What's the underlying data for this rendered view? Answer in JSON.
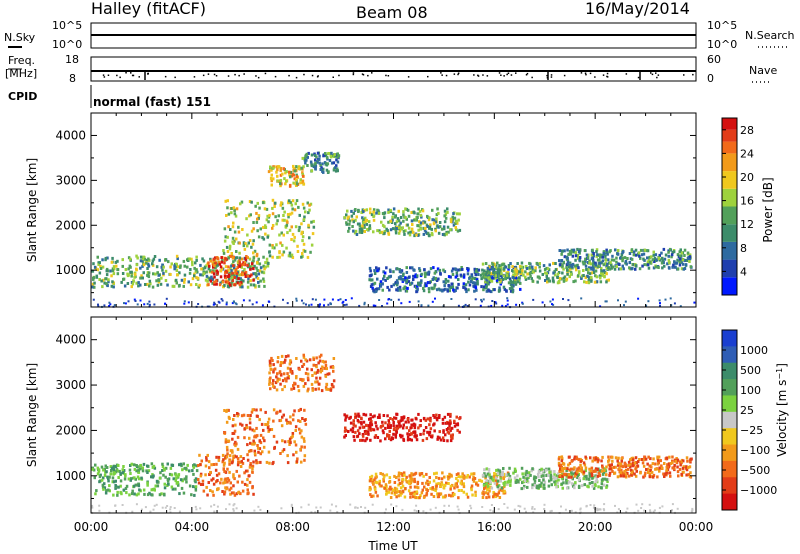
{
  "header": {
    "title": "Halley (fitACF)",
    "beam": "Beam 08",
    "date": "16/May/2014"
  },
  "left_labels": {
    "nsky": "N.Sky",
    "freq_line1": "Freq.",
    "freq_line2": "[MHz]",
    "cpid": "CPID"
  },
  "right_labels": {
    "nsearch": "N.Search",
    "nave": "Nave"
  },
  "noise_panel": {
    "left_ticks": [
      "10^5",
      "10^0"
    ],
    "right_ticks": [
      "10^5",
      "10^0"
    ]
  },
  "freq_panel": {
    "left_ticks": [
      "18",
      "8"
    ],
    "right_ticks": [
      "60",
      "0"
    ]
  },
  "cpid_text": "normal (fast) 151",
  "colors": {
    "power": [
      "#0019ff",
      "#1f3fae",
      "#2e6aa0",
      "#3c8c6a",
      "#52a05a",
      "#9ed23d",
      "#f0c81e",
      "#f29a1a",
      "#f26a1a",
      "#e23c18",
      "#d41010"
    ],
    "velocity": [
      "#1a3fd0",
      "#2f5db5",
      "#3c8c6a",
      "#52a05a",
      "#7bd23f",
      "#c8c8c8",
      "#f0c81e",
      "#f29a1a",
      "#f26a1a",
      "#e23c18",
      "#d41010"
    ]
  },
  "chart_data": [
    {
      "type": "heatmap",
      "panel": "power",
      "ylabel": "Slant Range [km]",
      "xlabel": "",
      "x_ticks": [
        "00:00",
        "04:00",
        "08:00",
        "12:00",
        "16:00",
        "20:00",
        "00:00"
      ],
      "xlim_hours": [
        0,
        24
      ],
      "y_ticks": [
        1000,
        2000,
        3000,
        4000
      ],
      "ylim": [
        180,
        4500
      ],
      "colorbar": {
        "label": "Power [dB]",
        "ticks": [
          4,
          8,
          12,
          16,
          20,
          24,
          28
        ],
        "range": [
          0,
          30
        ]
      },
      "regions": [
        {
          "t": [
            0,
            7
          ],
          "r": [
            650,
            1350
          ],
          "v": 11
        },
        {
          "t": [
            4.6,
            6.4
          ],
          "r": [
            700,
            1350
          ],
          "v": 27
        },
        {
          "t": [
            5.2,
            8.8
          ],
          "r": [
            1300,
            2600
          ],
          "v": 14
        },
        {
          "t": [
            7.0,
            8.4
          ],
          "r": [
            2900,
            3350
          ],
          "v": 19
        },
        {
          "t": [
            8.3,
            9.8
          ],
          "r": [
            3200,
            3650
          ],
          "v": 10
        },
        {
          "t": [
            10.0,
            14.6
          ],
          "r": [
            1800,
            2400
          ],
          "v": 12
        },
        {
          "t": [
            11.0,
            17.0
          ],
          "r": [
            550,
            1100
          ],
          "v": 7
        },
        {
          "t": [
            15.5,
            20.5
          ],
          "r": [
            750,
            1200
          ],
          "v": 13
        },
        {
          "t": [
            18.5,
            23.8
          ],
          "r": [
            1050,
            1500
          ],
          "v": 8
        }
      ]
    },
    {
      "type": "heatmap",
      "panel": "velocity",
      "ylabel": "Slant Range [km]",
      "xlabel": "Time UT",
      "x_ticks": [
        "00:00",
        "04:00",
        "08:00",
        "12:00",
        "16:00",
        "20:00",
        "00:00"
      ],
      "xlim_hours": [
        0,
        24
      ],
      "y_ticks": [
        1000,
        2000,
        3000,
        4000
      ],
      "ylim": [
        180,
        4500
      ],
      "colorbar": {
        "label": "Velocity [m s^-1]",
        "ticks": [
          "1000",
          "500",
          "100",
          "25",
          "−25",
          "−100",
          "−500",
          "−1000"
        ]
      },
      "regions": [
        {
          "t": [
            0,
            4.2
          ],
          "r": [
            600,
            1300
          ],
          "v": 3
        },
        {
          "t": [
            4.2,
            6.4
          ],
          "r": [
            600,
            1500
          ],
          "v": 8
        },
        {
          "t": [
            5.2,
            8.5
          ],
          "r": [
            1300,
            2500
          ],
          "v": 8
        },
        {
          "t": [
            7.0,
            9.6
          ],
          "r": [
            2900,
            3700
          ],
          "v": 8
        },
        {
          "t": [
            10.0,
            14.6
          ],
          "r": [
            1800,
            2400
          ],
          "v": 10
        },
        {
          "t": [
            11.0,
            16.5
          ],
          "r": [
            550,
            1100
          ],
          "v": 7
        },
        {
          "t": [
            15.5,
            20.5
          ],
          "r": [
            750,
            1200
          ],
          "v": 4
        },
        {
          "t": [
            18.5,
            23.8
          ],
          "r": [
            1000,
            1450
          ],
          "v": 8
        }
      ]
    }
  ]
}
